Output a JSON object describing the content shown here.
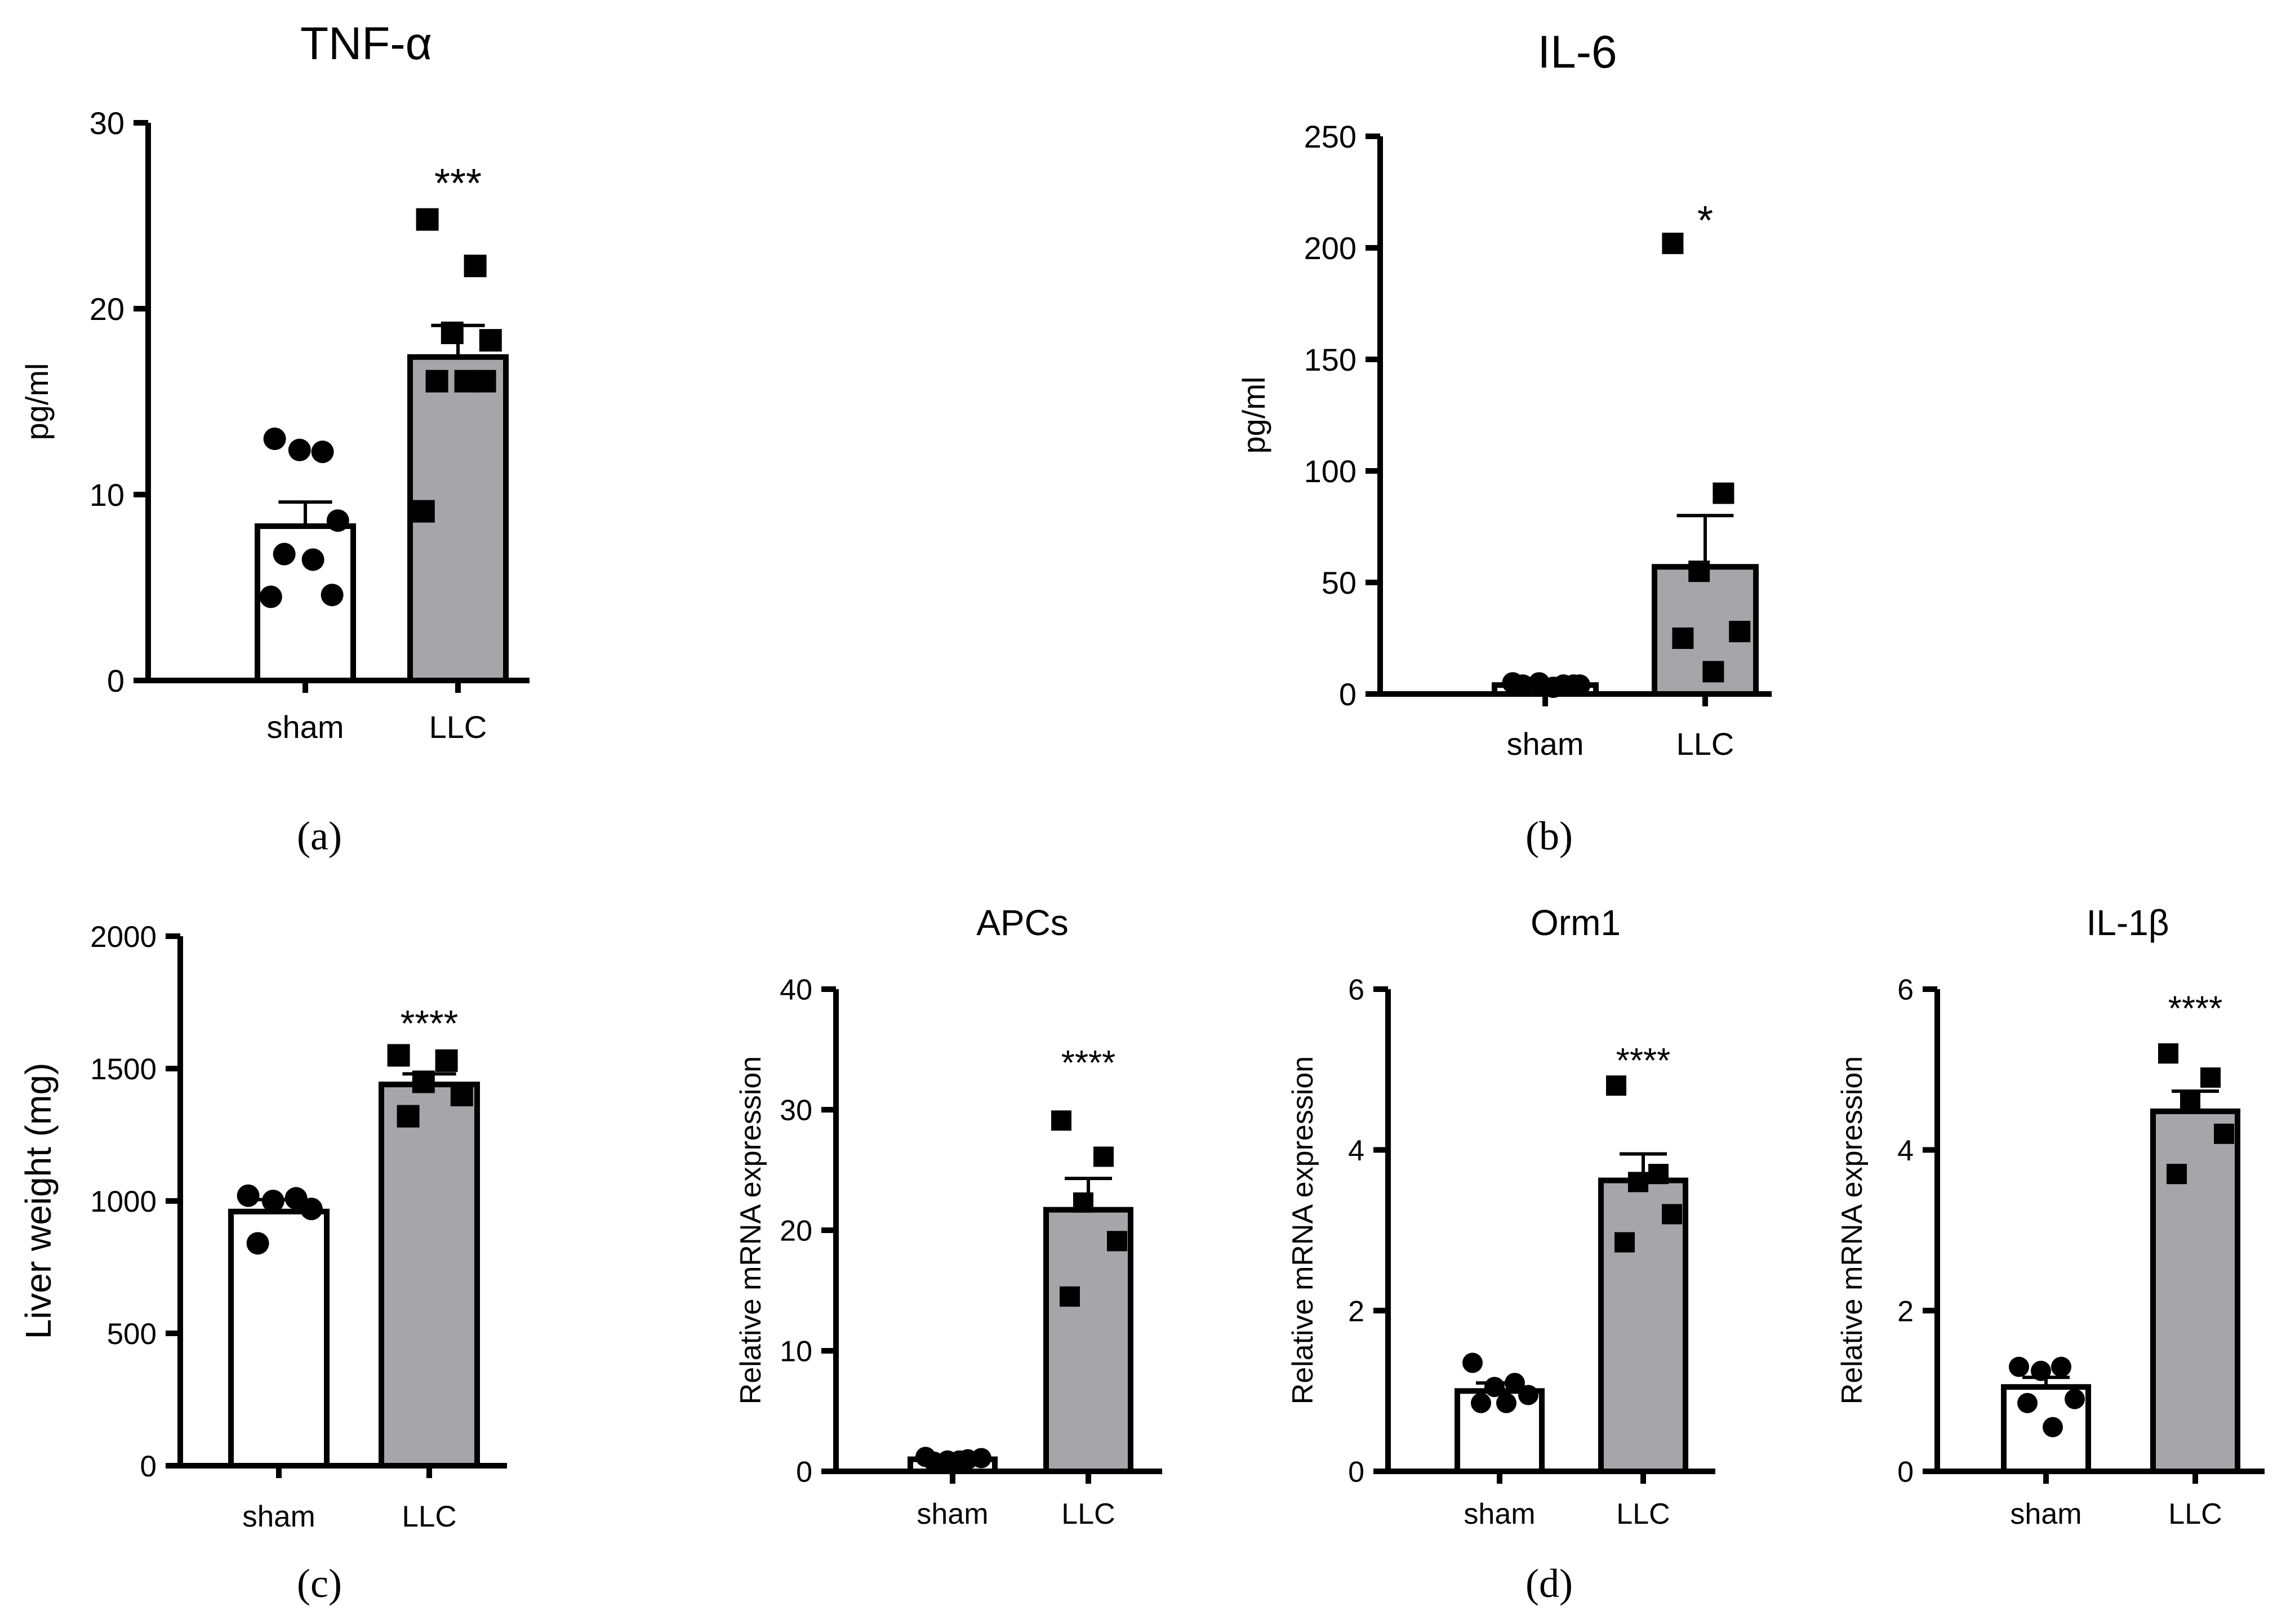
{
  "figure": {
    "panel_labels": [
      "(a)",
      "(b)",
      "(c)",
      "(d)"
    ]
  },
  "colors": {
    "axis": "#000000",
    "sham_bar": "#ffffff",
    "llc_bar": "#a6a6a8",
    "marker": "#000000"
  },
  "chart_data": [
    {
      "id": "tnf",
      "type": "bar",
      "title": "TNF-α",
      "ylabel": "pg/ml",
      "xlabel": "",
      "categories": [
        "sham",
        "LLC"
      ],
      "ylim": [
        0,
        30
      ],
      "yticks": [
        0,
        10,
        20,
        30
      ],
      "ytick_labels": [
        "0",
        "10",
        "20",
        "30"
      ],
      "series": [
        {
          "name": "sham",
          "mean": 8.3,
          "sem": 1.3,
          "points": [
            13.0,
            12.3,
            12.4,
            8.6,
            6.8,
            6.5,
            4.6,
            4.5
          ],
          "marker": "circle"
        },
        {
          "name": "LLC",
          "mean": 17.4,
          "sem": 1.7,
          "points": [
            24.8,
            22.3,
            18.7,
            18.3,
            16.1,
            16.1,
            16.1,
            9.1
          ],
          "marker": "square"
        }
      ],
      "annotations": [
        {
          "category": "LLC",
          "text": "***",
          "y": 27.2
        }
      ]
    },
    {
      "id": "il6",
      "type": "bar",
      "title": "IL-6",
      "ylabel": "pg/ml",
      "xlabel": "",
      "categories": [
        "sham",
        "LLC"
      ],
      "ylim": [
        0,
        250
      ],
      "yticks": [
        0,
        50,
        100,
        150,
        200,
        250
      ],
      "ytick_labels": [
        "0",
        "50",
        "100",
        "150",
        "200",
        "250"
      ],
      "series": [
        {
          "name": "sham",
          "mean": 4,
          "sem": 0.5,
          "points": [
            5,
            4,
            5,
            4,
            4,
            3,
            4
          ],
          "marker": "circle"
        },
        {
          "name": "LLC",
          "mean": 57,
          "sem": 23,
          "points": [
            202,
            90,
            55,
            28,
            25,
            10
          ],
          "marker": "square"
        }
      ],
      "annotations": [
        {
          "category": "LLC",
          "text": "*",
          "y": 216
        }
      ]
    },
    {
      "id": "liver",
      "type": "bar",
      "title": "",
      "ylabel": "Liver weight (mg)",
      "xlabel": "",
      "categories": [
        "sham",
        "LLC"
      ],
      "ylim": [
        0,
        2000
      ],
      "yticks": [
        0,
        500,
        1000,
        1500,
        2000
      ],
      "ytick_labels": [
        "0",
        "500",
        "1000",
        "1500",
        "2000"
      ],
      "series": [
        {
          "name": "sham",
          "mean": 960,
          "sem": 45,
          "points": [
            1020,
            1010,
            1000,
            970,
            840
          ],
          "marker": "circle"
        },
        {
          "name": "LLC",
          "mean": 1440,
          "sem": 40,
          "points": [
            1550,
            1530,
            1450,
            1400,
            1320
          ],
          "marker": "square"
        }
      ],
      "annotations": [
        {
          "category": "LLC",
          "text": "****",
          "y": 1700
        }
      ]
    },
    {
      "id": "apcs",
      "type": "bar",
      "title": "APCs",
      "ylabel": "Relative mRNA  expression",
      "xlabel": "",
      "categories": [
        "sham",
        "LLC"
      ],
      "ylim": [
        0,
        40
      ],
      "yticks": [
        0,
        10,
        20,
        30,
        40
      ],
      "ytick_labels": [
        "0",
        "10",
        "20",
        "30",
        "40"
      ],
      "series": [
        {
          "name": "sham",
          "mean": 1.0,
          "sem": 0.1,
          "points": [
            1.2,
            1.0,
            0.9,
            1.1,
            0.8,
            0.9
          ],
          "marker": "circle"
        },
        {
          "name": "LLC",
          "mean": 21.7,
          "sem": 2.6,
          "points": [
            29.1,
            26.1,
            22.3,
            19.1,
            14.5
          ],
          "marker": "square"
        }
      ],
      "annotations": [
        {
          "category": "LLC",
          "text": "****",
          "y": 34.5
        }
      ]
    },
    {
      "id": "orm1",
      "type": "bar",
      "title": "Orm1",
      "ylabel": "Relative mRNA  expression",
      "xlabel": "",
      "categories": [
        "sham",
        "LLC"
      ],
      "ylim": [
        0,
        6
      ],
      "yticks": [
        0,
        2,
        4,
        6
      ],
      "ytick_labels": [
        "0",
        "2",
        "4",
        "6"
      ],
      "series": [
        {
          "name": "sham",
          "mean": 1.0,
          "sem": 0.1,
          "points": [
            1.35,
            1.1,
            1.05,
            0.95,
            0.85,
            0.85
          ],
          "marker": "circle"
        },
        {
          "name": "LLC",
          "mean": 3.62,
          "sem": 0.33,
          "points": [
            4.8,
            3.7,
            3.6,
            3.2,
            2.85
          ],
          "marker": "square"
        }
      ],
      "annotations": [
        {
          "category": "LLC",
          "text": "****",
          "y": 5.2
        }
      ]
    },
    {
      "id": "il1b",
      "type": "bar",
      "title": "IL-1β",
      "ylabel": "Relative mRNA  expression",
      "xlabel": "",
      "categories": [
        "sham",
        "LLC"
      ],
      "ylim": [
        0,
        6
      ],
      "yticks": [
        0,
        2,
        4,
        6
      ],
      "ytick_labels": [
        "0",
        "2",
        "4",
        "6"
      ],
      "series": [
        {
          "name": "sham",
          "mean": 1.05,
          "sem": 0.12,
          "points": [
            1.3,
            1.3,
            1.25,
            0.9,
            0.85,
            0.55
          ],
          "marker": "circle"
        },
        {
          "name": "LLC",
          "mean": 4.48,
          "sem": 0.25,
          "points": [
            5.2,
            4.9,
            4.6,
            4.2,
            3.7
          ],
          "marker": "square"
        }
      ],
      "annotations": [
        {
          "category": "LLC",
          "text": "****",
          "y": 5.85
        }
      ]
    }
  ]
}
